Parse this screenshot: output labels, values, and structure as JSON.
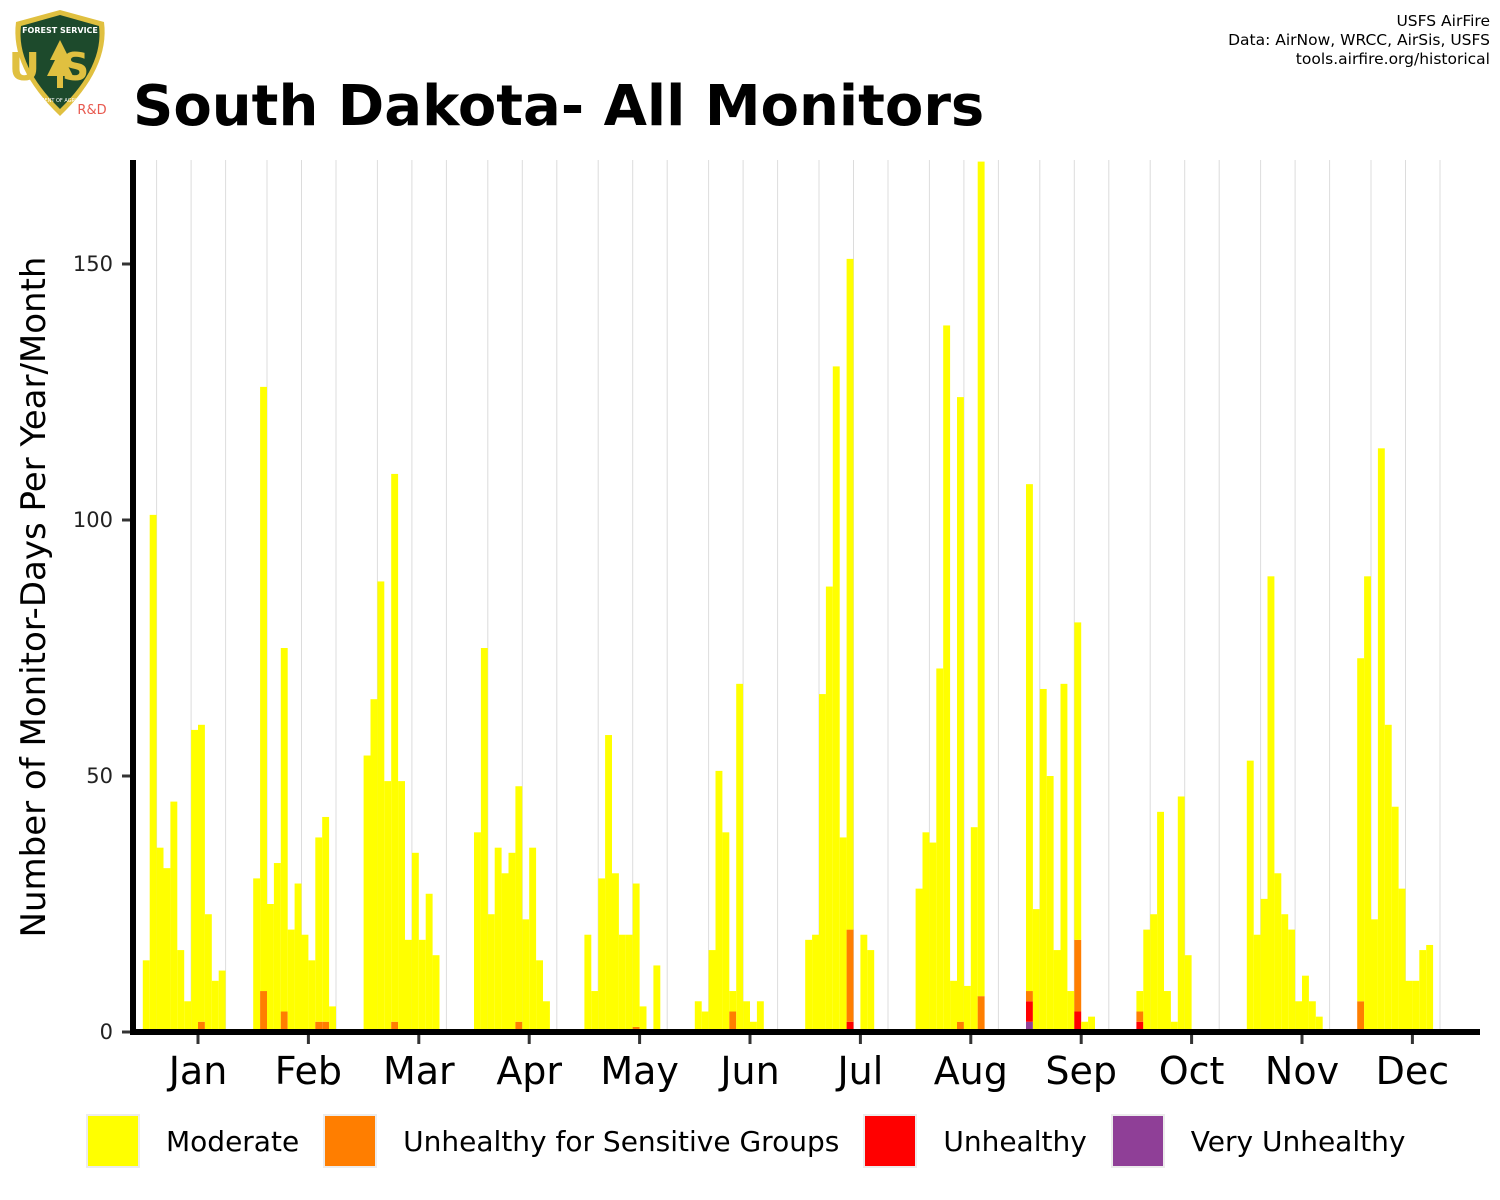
{
  "header": {
    "title": "South Dakota- All Monitors",
    "credits": [
      "USFS AirFire",
      "Data: AirNow, WRCC, AirSis, USFS",
      "tools.airfire.org/historical"
    ]
  },
  "logo": {
    "icon": "usfs-shield-icon",
    "top_text": "FOREST SERVICE",
    "letters": "US",
    "bottom_text": "DEPARTMENT OF AGRICULTURE",
    "suffix": "R&D"
  },
  "colors": {
    "moderate": "#FFFF00",
    "usg": "#FF7E00",
    "unhealthy": "#FF0000",
    "very_unhealthy": "#8F3F97",
    "logo_green": "#1d4a2c",
    "logo_gold": "#e0c040",
    "logo_red_text": "#e8594f"
  },
  "chart_data": {
    "type": "bar",
    "stacked": true,
    "ylabel": "Number of Monitor-Days Per Year/Month",
    "xlabel": "",
    "ylim": [
      0,
      170
    ],
    "yticks": [
      0,
      50,
      100,
      150
    ],
    "grid": "vertical month-year separators",
    "legend_placement": "bottom",
    "categories": [
      "Jan",
      "Feb",
      "Mar",
      "Apr",
      "May",
      "Jun",
      "Jul",
      "Aug",
      "Sep",
      "Oct",
      "Nov",
      "Dec"
    ],
    "bars_per_month": 16,
    "series": [
      {
        "name": "Moderate",
        "color": "#FFFF00",
        "values": [
          [
            14,
            101,
            36,
            32,
            45,
            16,
            6,
            59,
            58,
            23,
            10,
            12,
            0,
            0,
            0,
            0
          ],
          [
            30,
            118,
            25,
            33,
            71,
            20,
            29,
            19,
            14,
            36,
            40,
            5,
            0,
            0,
            0,
            0
          ],
          [
            54,
            65,
            88,
            49,
            107,
            49,
            18,
            35,
            18,
            27,
            15,
            0,
            0,
            0,
            0,
            0
          ],
          [
            39,
            75,
            23,
            36,
            31,
            35,
            46,
            22,
            36,
            14,
            6,
            0,
            0,
            0,
            0,
            0
          ],
          [
            19,
            8,
            30,
            58,
            31,
            19,
            19,
            28,
            5,
            0,
            13,
            0,
            0,
            0,
            0,
            0
          ],
          [
            6,
            4,
            16,
            51,
            39,
            4,
            68,
            6,
            2,
            6,
            0,
            0,
            0,
            0,
            0,
            0
          ],
          [
            18,
            19,
            66,
            87,
            130,
            38,
            131,
            0,
            19,
            16,
            0,
            0,
            0,
            0,
            0,
            0
          ],
          [
            28,
            39,
            37,
            71,
            138,
            10,
            122,
            9,
            40,
            163,
            0,
            0,
            0,
            0,
            0,
            0
          ],
          [
            99,
            24,
            67,
            50,
            16,
            68,
            8,
            62,
            2,
            3,
            0,
            0,
            0,
            0,
            0,
            0
          ],
          [
            4,
            20,
            23,
            43,
            8,
            2,
            46,
            15,
            0,
            0,
            0,
            0,
            0,
            0,
            0,
            0
          ],
          [
            53,
            19,
            26,
            89,
            31,
            23,
            20,
            6,
            11,
            6,
            3,
            0,
            0,
            0,
            0,
            0
          ],
          [
            67,
            89,
            22,
            114,
            60,
            44,
            28,
            10,
            10,
            16,
            17,
            0,
            0,
            0,
            0,
            0
          ]
        ]
      },
      {
        "name": "Unhealthy for Sensitive Groups",
        "color": "#FF7E00",
        "values": [
          [
            0,
            0,
            0,
            0,
            0,
            0,
            0,
            0,
            2,
            0,
            0,
            0,
            0,
            0,
            0,
            0
          ],
          [
            0,
            8,
            0,
            0,
            4,
            0,
            0,
            0,
            0,
            2,
            2,
            0,
            0,
            0,
            0,
            0
          ],
          [
            0,
            0,
            0,
            0,
            2,
            0,
            0,
            0,
            0,
            0,
            0,
            0,
            0,
            0,
            0,
            0
          ],
          [
            0,
            0,
            0,
            0,
            0,
            0,
            2,
            0,
            0,
            0,
            0,
            0,
            0,
            0,
            0,
            0
          ],
          [
            0,
            0,
            0,
            0,
            0,
            0,
            0,
            1,
            0,
            0,
            0,
            0,
            0,
            0,
            0,
            0
          ],
          [
            0,
            0,
            0,
            0,
            0,
            4,
            0,
            0,
            0,
            0,
            0,
            0,
            0,
            0,
            0,
            0
          ],
          [
            0,
            0,
            0,
            0,
            0,
            0,
            18,
            0,
            0,
            0,
            0,
            0,
            0,
            0,
            0,
            0
          ],
          [
            0,
            0,
            0,
            0,
            0,
            0,
            2,
            0,
            0,
            7,
            0,
            0,
            0,
            0,
            0,
            0
          ],
          [
            2,
            0,
            0,
            0,
            0,
            0,
            0,
            14,
            0,
            0,
            0,
            0,
            0,
            0,
            0,
            0
          ],
          [
            2,
            0,
            0,
            0,
            0,
            0,
            0,
            0,
            0,
            0,
            0,
            0,
            0,
            0,
            0,
            0
          ],
          [
            0,
            0,
            0,
            0,
            0,
            0,
            0,
            0,
            0,
            0,
            0,
            0,
            0,
            0,
            0,
            0
          ],
          [
            6,
            0,
            0,
            0,
            0,
            0,
            0,
            0,
            0,
            0,
            0,
            0,
            0,
            0,
            0,
            0
          ]
        ]
      },
      {
        "name": "Unhealthy",
        "color": "#FF0000",
        "values": [
          [
            0,
            0,
            0,
            0,
            0,
            0,
            0,
            0,
            0,
            0,
            0,
            0,
            0,
            0,
            0,
            0
          ],
          [
            0,
            0,
            0,
            0,
            0,
            0,
            0,
            0,
            0,
            0,
            0,
            0,
            0,
            0,
            0,
            0
          ],
          [
            0,
            0,
            0,
            0,
            0,
            0,
            0,
            0,
            0,
            0,
            0,
            0,
            0,
            0,
            0,
            0
          ],
          [
            0,
            0,
            0,
            0,
            0,
            0,
            0,
            0,
            0,
            0,
            0,
            0,
            0,
            0,
            0,
            0
          ],
          [
            0,
            0,
            0,
            0,
            0,
            0,
            0,
            0,
            0,
            0,
            0,
            0,
            0,
            0,
            0,
            0
          ],
          [
            0,
            0,
            0,
            0,
            0,
            0,
            0,
            0,
            0,
            0,
            0,
            0,
            0,
            0,
            0,
            0
          ],
          [
            0,
            0,
            0,
            0,
            0,
            0,
            2,
            0,
            0,
            0,
            0,
            0,
            0,
            0,
            0,
            0
          ],
          [
            0,
            0,
            0,
            0,
            0,
            0,
            0,
            0,
            0,
            0,
            0,
            0,
            0,
            0,
            0,
            0
          ],
          [
            4,
            0,
            0,
            0,
            0,
            0,
            0,
            4,
            0,
            0,
            0,
            0,
            0,
            0,
            0,
            0
          ],
          [
            2,
            0,
            0,
            0,
            0,
            0,
            0,
            0,
            0,
            0,
            0,
            0,
            0,
            0,
            0,
            0
          ],
          [
            0,
            0,
            0,
            0,
            0,
            0,
            0,
            0,
            0,
            0,
            0,
            0,
            0,
            0,
            0,
            0
          ],
          [
            0,
            0,
            0,
            0,
            0,
            0,
            0,
            0,
            0,
            0,
            0,
            0,
            0,
            0,
            0,
            0
          ]
        ]
      },
      {
        "name": "Very Unhealthy",
        "color": "#8F3F97",
        "values": [
          [
            0,
            0,
            0,
            0,
            0,
            0,
            0,
            0,
            0,
            0,
            0,
            0,
            0,
            0,
            0,
            0
          ],
          [
            0,
            0,
            0,
            0,
            0,
            0,
            0,
            0,
            0,
            0,
            0,
            0,
            0,
            0,
            0,
            0
          ],
          [
            0,
            0,
            0,
            0,
            0,
            0,
            0,
            0,
            0,
            0,
            0,
            0,
            0,
            0,
            0,
            0
          ],
          [
            0,
            0,
            0,
            0,
            0,
            0,
            0,
            0,
            0,
            0,
            0,
            0,
            0,
            0,
            0,
            0
          ],
          [
            0,
            0,
            0,
            0,
            0,
            0,
            0,
            0,
            0,
            0,
            0,
            0,
            0,
            0,
            0,
            0
          ],
          [
            0,
            0,
            0,
            0,
            0,
            0,
            0,
            0,
            0,
            0,
            0,
            0,
            0,
            0,
            0,
            0
          ],
          [
            0,
            0,
            0,
            0,
            0,
            0,
            0,
            0,
            0,
            0,
            0,
            0,
            0,
            0,
            0,
            0
          ],
          [
            0,
            0,
            0,
            0,
            0,
            0,
            0,
            0,
            0,
            0,
            0,
            0,
            0,
            0,
            0,
            0
          ],
          [
            2,
            0,
            0,
            0,
            0,
            0,
            0,
            0,
            0,
            0,
            0,
            0,
            0,
            0,
            0,
            0
          ],
          [
            0,
            0,
            0,
            0,
            0,
            0,
            0,
            0,
            0,
            0,
            0,
            0,
            0,
            0,
            0,
            0
          ],
          [
            0,
            0,
            0,
            0,
            0,
            0,
            0,
            0,
            0,
            0,
            0,
            0,
            0,
            0,
            0,
            0
          ],
          [
            0,
            0,
            0,
            0,
            0,
            0,
            0,
            0,
            0,
            0,
            0,
            0,
            0,
            0,
            0,
            0
          ]
        ]
      }
    ]
  }
}
